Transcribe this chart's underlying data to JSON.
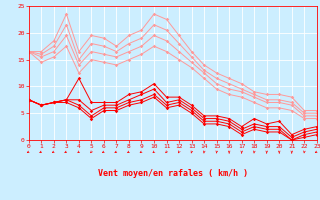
{
  "x": [
    0,
    1,
    2,
    3,
    4,
    5,
    6,
    7,
    8,
    9,
    10,
    11,
    12,
    13,
    14,
    15,
    16,
    17,
    18,
    19,
    20,
    21,
    22,
    23
  ],
  "line1": [
    16.5,
    16.5,
    18.5,
    23.5,
    16.5,
    19.5,
    19.0,
    17.5,
    19.5,
    20.5,
    23.5,
    22.5,
    19.5,
    16.5,
    14.0,
    12.5,
    11.5,
    10.5,
    9.0,
    8.5,
    8.5,
    8.0,
    5.5,
    5.5
  ],
  "line2": [
    16.5,
    16.0,
    17.5,
    21.5,
    15.0,
    18.0,
    17.5,
    16.5,
    18.0,
    19.0,
    21.5,
    20.5,
    18.0,
    15.5,
    13.0,
    11.5,
    10.5,
    9.5,
    8.5,
    7.5,
    7.5,
    7.0,
    5.0,
    5.0
  ],
  "line3": [
    16.5,
    15.5,
    16.5,
    19.5,
    14.0,
    16.5,
    16.0,
    15.5,
    16.5,
    17.5,
    19.5,
    18.5,
    16.5,
    14.5,
    12.5,
    10.5,
    9.5,
    9.0,
    8.0,
    7.0,
    7.0,
    6.5,
    4.5,
    4.5
  ],
  "line4": [
    16.5,
    14.5,
    15.5,
    17.5,
    12.5,
    15.0,
    14.5,
    14.0,
    15.0,
    16.0,
    17.5,
    16.5,
    15.0,
    13.5,
    11.5,
    9.5,
    8.5,
    8.0,
    7.0,
    6.0,
    6.0,
    5.5,
    4.0,
    4.0
  ],
  "line5": [
    7.5,
    6.5,
    7.0,
    7.5,
    11.5,
    7.0,
    7.0,
    7.0,
    8.5,
    9.0,
    10.5,
    8.0,
    8.0,
    6.5,
    4.5,
    4.5,
    4.0,
    2.5,
    4.0,
    3.0,
    3.5,
    1.0,
    2.0,
    2.5
  ],
  "line6": [
    7.5,
    6.5,
    7.0,
    7.5,
    7.5,
    5.5,
    6.5,
    6.5,
    7.5,
    8.5,
    9.5,
    7.0,
    7.5,
    6.0,
    4.0,
    4.0,
    3.5,
    2.0,
    3.0,
    2.5,
    2.5,
    0.5,
    1.5,
    2.0
  ],
  "line7": [
    7.5,
    6.5,
    7.0,
    7.5,
    6.5,
    4.5,
    6.0,
    6.0,
    7.0,
    7.5,
    8.5,
    6.5,
    7.0,
    5.5,
    3.5,
    3.5,
    3.0,
    1.5,
    2.5,
    2.0,
    2.0,
    0.0,
    1.0,
    1.5
  ],
  "line8": [
    7.5,
    6.5,
    7.0,
    7.0,
    6.0,
    4.0,
    5.5,
    5.5,
    6.5,
    7.0,
    8.0,
    6.0,
    6.5,
    5.0,
    3.0,
    3.0,
    2.5,
    1.0,
    2.0,
    1.5,
    1.5,
    0.0,
    0.5,
    1.0
  ],
  "bg_color": "#cceeff",
  "grid_color": "#ffffff",
  "line_light_color": "#ff9999",
  "line_dark_color": "#ff0000",
  "xlabel": "Vent moyen/en rafales ( km/h )",
  "xlim": [
    0,
    23
  ],
  "ylim": [
    0,
    25
  ],
  "yticks": [
    0,
    5,
    10,
    15,
    20,
    25
  ],
  "xticks": [
    0,
    1,
    2,
    3,
    4,
    5,
    6,
    7,
    8,
    9,
    10,
    11,
    12,
    13,
    14,
    15,
    16,
    17,
    18,
    19,
    20,
    21,
    22,
    23
  ]
}
